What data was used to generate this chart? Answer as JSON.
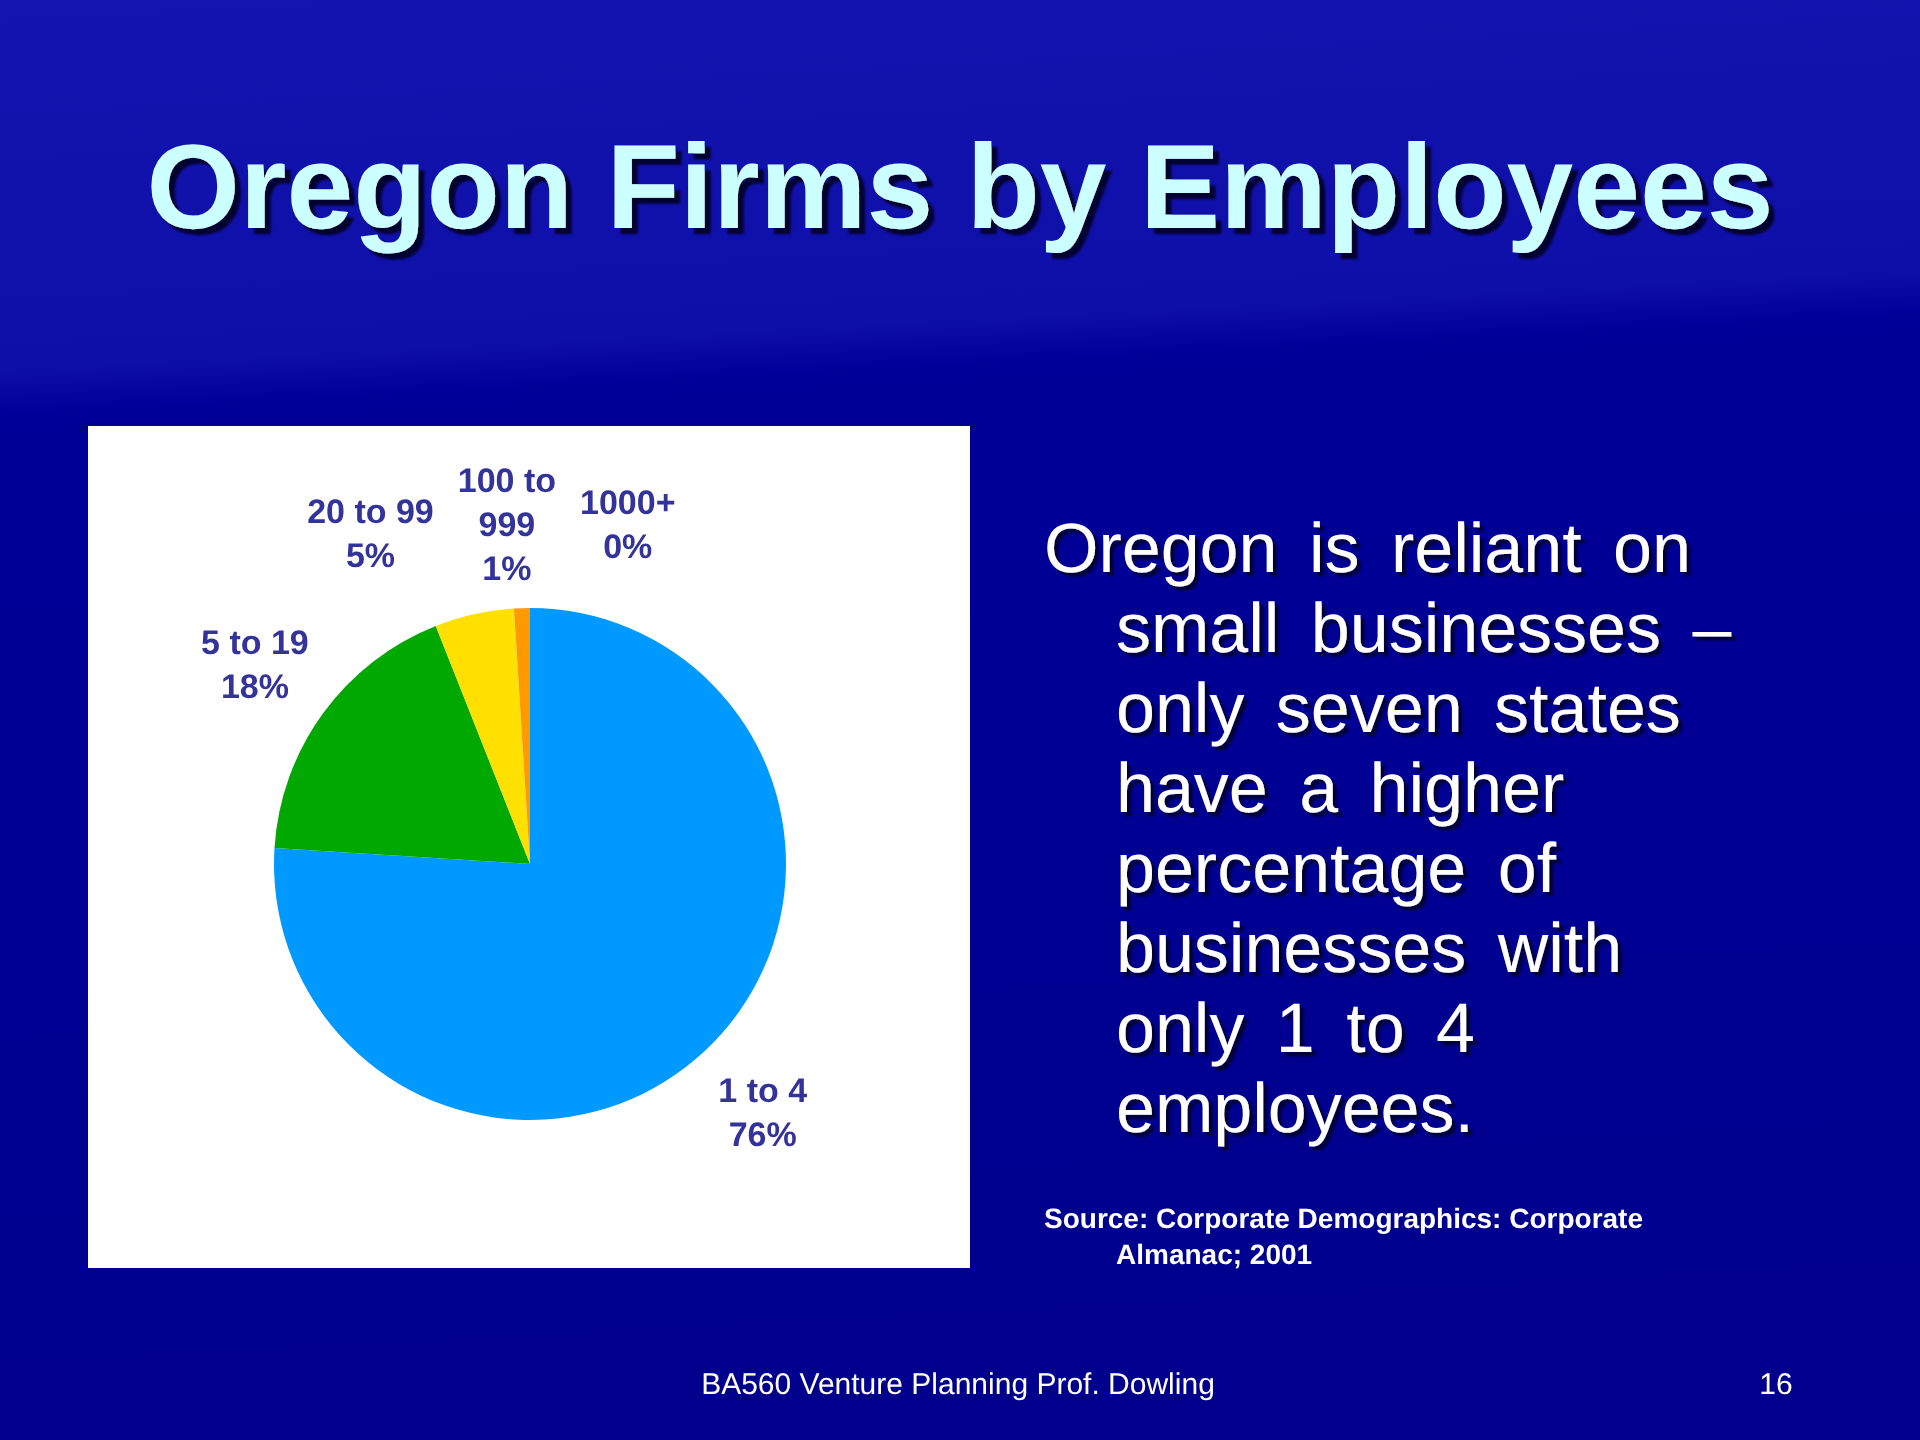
{
  "chart_data": {
    "type": "pie",
    "title": "Oregon Firms by Employees",
    "categories": [
      "1 to 4",
      "5 to 19",
      "20 to 99",
      "100 to 999",
      "1000+"
    ],
    "values": [
      76,
      18,
      5,
      1,
      0
    ],
    "colors": [
      "#0099ff",
      "#00a800",
      "#ffe000",
      "#ff9900",
      "#cc0000"
    ],
    "value_labels": [
      "76%",
      "18%",
      "5%",
      "1%",
      "0%"
    ],
    "annotations": [
      "Oregon is reliant on small businesses – only seven states have a higher percentage of businesses with only 1 to 4 employees.",
      "Source: Corporate Demographics: Corporate Almanac; 2001",
      "BA560 Venture Planning Prof. Dowling",
      "16"
    ]
  }
}
